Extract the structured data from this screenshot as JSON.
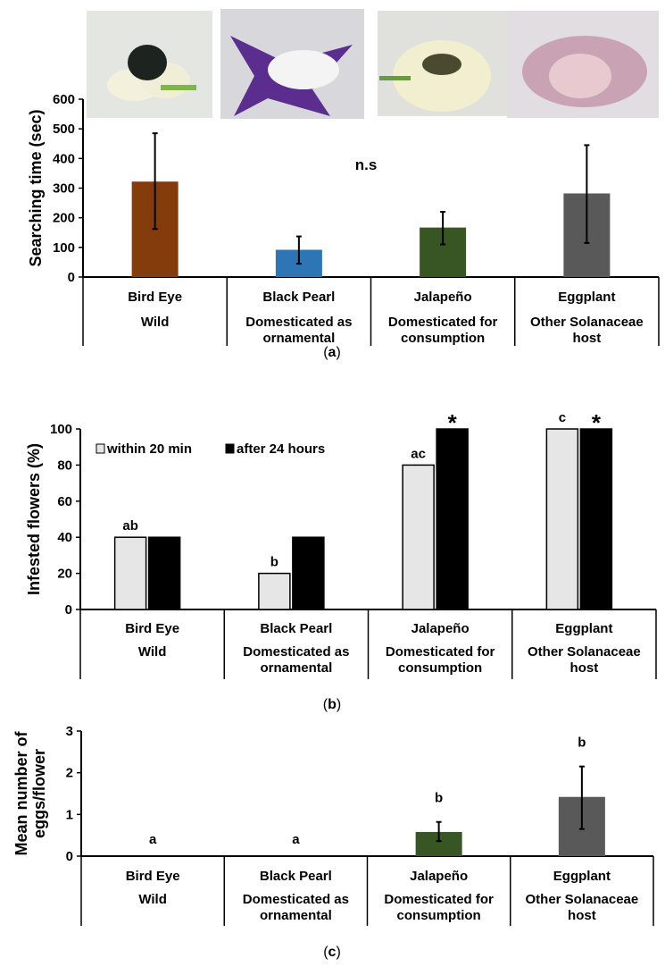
{
  "categories": [
    "Bird Eye",
    "Black Pearl",
    "Jalapeño",
    "Eggplant"
  ],
  "groups": [
    [
      "Wild"
    ],
    [
      "Domesticated as",
      "ornamental"
    ],
    [
      "Domesticated for",
      "consumption"
    ],
    [
      "Other Solanaceae",
      "host"
    ]
  ],
  "chart_data": [
    {
      "type": "bar",
      "panel": "(a)",
      "caption_letter": "a",
      "ylabel": "Searching time (sec)",
      "ylim": [
        0,
        600
      ],
      "yticks": [
        "0",
        "100",
        "200",
        "300",
        "400",
        "500",
        "600"
      ],
      "values": [
        322,
        92,
        167,
        282
      ],
      "error_low": [
        162,
        45,
        110,
        115
      ],
      "error_high": [
        485,
        137,
        220,
        445
      ],
      "colors": [
        "#843c0c",
        "#2e75b6",
        "#375623",
        "#595959"
      ],
      "annotation": "n.s"
    },
    {
      "type": "bar",
      "panel": "(b)",
      "caption_letter": "b",
      "ylabel": "Infested flowers (%)",
      "ylim": [
        0,
        100
      ],
      "yticks": [
        "0",
        "20",
        "40",
        "60",
        "80",
        "100"
      ],
      "series": [
        {
          "name": "within 20 min",
          "values": [
            40,
            20,
            80,
            100
          ],
          "color": "#e6e6e6",
          "letters": [
            "ab",
            "b",
            "ac",
            "c"
          ]
        },
        {
          "name": "after 24 hours",
          "values": [
            40,
            40,
            100,
            100
          ],
          "color": "#000000",
          "letters": [
            "",
            "",
            "*",
            "*"
          ]
        }
      ],
      "legend_position": "top-left"
    },
    {
      "type": "bar",
      "panel": "(c)",
      "caption_letter": "c",
      "ylabel": [
        "Mean number of",
        "eggs/flower"
      ],
      "ylim": [
        0,
        3
      ],
      "yticks": [
        "0",
        "1",
        "2",
        "3"
      ],
      "values": [
        0,
        0,
        0.58,
        1.42
      ],
      "error_low": [
        null,
        null,
        0.36,
        0.65
      ],
      "error_high": [
        null,
        null,
        0.82,
        2.15
      ],
      "colors": [
        "#843c0c",
        "#2e75b6",
        "#375623",
        "#595959"
      ],
      "letters": [
        "a",
        "a",
        "b",
        "b"
      ]
    }
  ]
}
